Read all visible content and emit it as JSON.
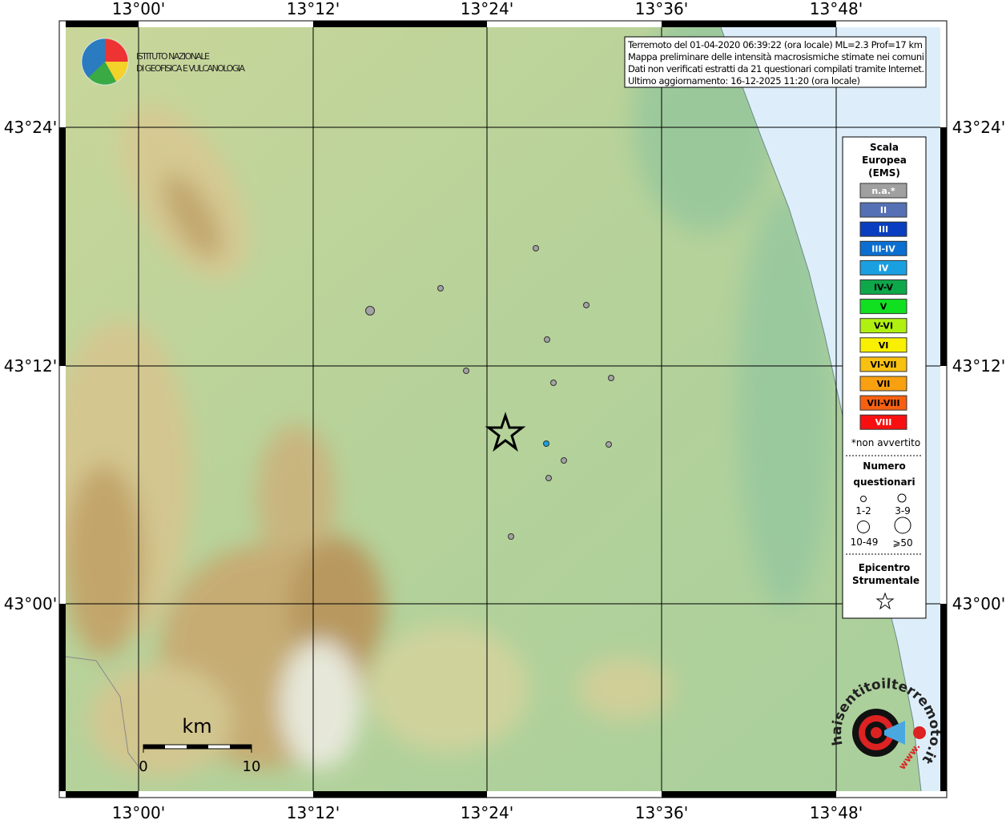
{
  "header": {
    "institute": [
      "ISTITUTO NAZIONALE",
      "DI GEOFISICA E VULCANOLOGIA"
    ],
    "info": [
      "Terremoto del 01-04-2020 06:39:22 (ora locale) ML=2.3 Prof=17 km",
      "Mappa preliminare delle intensità macrosismiche stimate nei comuni",
      "Dati non verificati estratti da 21 questionari compilati tramite Internet.",
      "Ultimo aggiornamento: 16-12-2025 11:20 (ora locale)"
    ]
  },
  "axes": {
    "lon": [
      "13°00'",
      "13°12'",
      "13°24'",
      "13°36'",
      "13°48'"
    ],
    "lat": [
      "43°24'",
      "43°12'",
      "43°00'"
    ]
  },
  "legend": {
    "title": [
      "Scala",
      "Europea",
      "(EMS)"
    ],
    "levels": [
      "n.a.*",
      "II",
      "III",
      "III-IV",
      "IV",
      "IV-V",
      "V",
      "V-VI",
      "VI",
      "VI-VII",
      "VII",
      "VII-VIII",
      "VIII"
    ],
    "note": "*non avvertito",
    "size_title": [
      "Numero",
      "questionari"
    ],
    "sizes": [
      "1-2",
      "3-9",
      "10-49",
      "⩾50"
    ],
    "epicenter_title": [
      "Epicentro",
      "Strumentale"
    ]
  },
  "scale": {
    "unit": "km",
    "labels": [
      "0",
      "10"
    ]
  },
  "logo": {
    "site": "haisentitoilterremoto.it",
    "prefix": "www."
  }
}
